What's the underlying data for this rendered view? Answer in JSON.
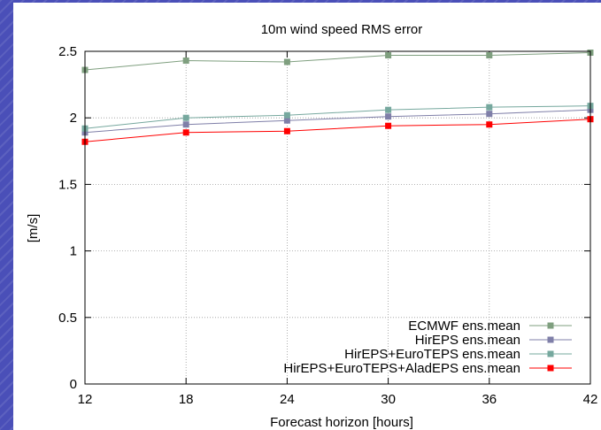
{
  "chart_data": {
    "type": "line",
    "title": "10m wind speed RMS error",
    "xlabel": "Forecast horizon [hours]",
    "ylabel": "[m/s]",
    "x": [
      12,
      18,
      24,
      30,
      36,
      42
    ],
    "xlim": [
      12,
      42
    ],
    "ylim": [
      0,
      2.5
    ],
    "xticks": [
      "12",
      "18",
      "24",
      "30",
      "36",
      "42"
    ],
    "yticks": [
      "0",
      "0.5",
      "1",
      "1.5",
      "2",
      "2.5"
    ],
    "grid": true,
    "legend_position": "bottom-right",
    "series": [
      {
        "name": "ECMWF ens.mean",
        "color": "#7f9f7f",
        "values": [
          2.36,
          2.43,
          2.42,
          2.47,
          2.47,
          2.49
        ]
      },
      {
        "name": "HirEPS ens.mean",
        "color": "#7f7fa8",
        "values": [
          1.89,
          1.95,
          1.98,
          2.01,
          2.03,
          2.06
        ]
      },
      {
        "name": "HirEPS+EuroTEPS ens.mean",
        "color": "#76a89e",
        "values": [
          1.92,
          2.0,
          2.02,
          2.06,
          2.08,
          2.09
        ]
      },
      {
        "name": "HirEPS+EuroTEPS+AladEPS ens.mean",
        "color": "#ff0000",
        "values": [
          1.82,
          1.89,
          1.9,
          1.94,
          1.95,
          1.99
        ]
      }
    ]
  }
}
